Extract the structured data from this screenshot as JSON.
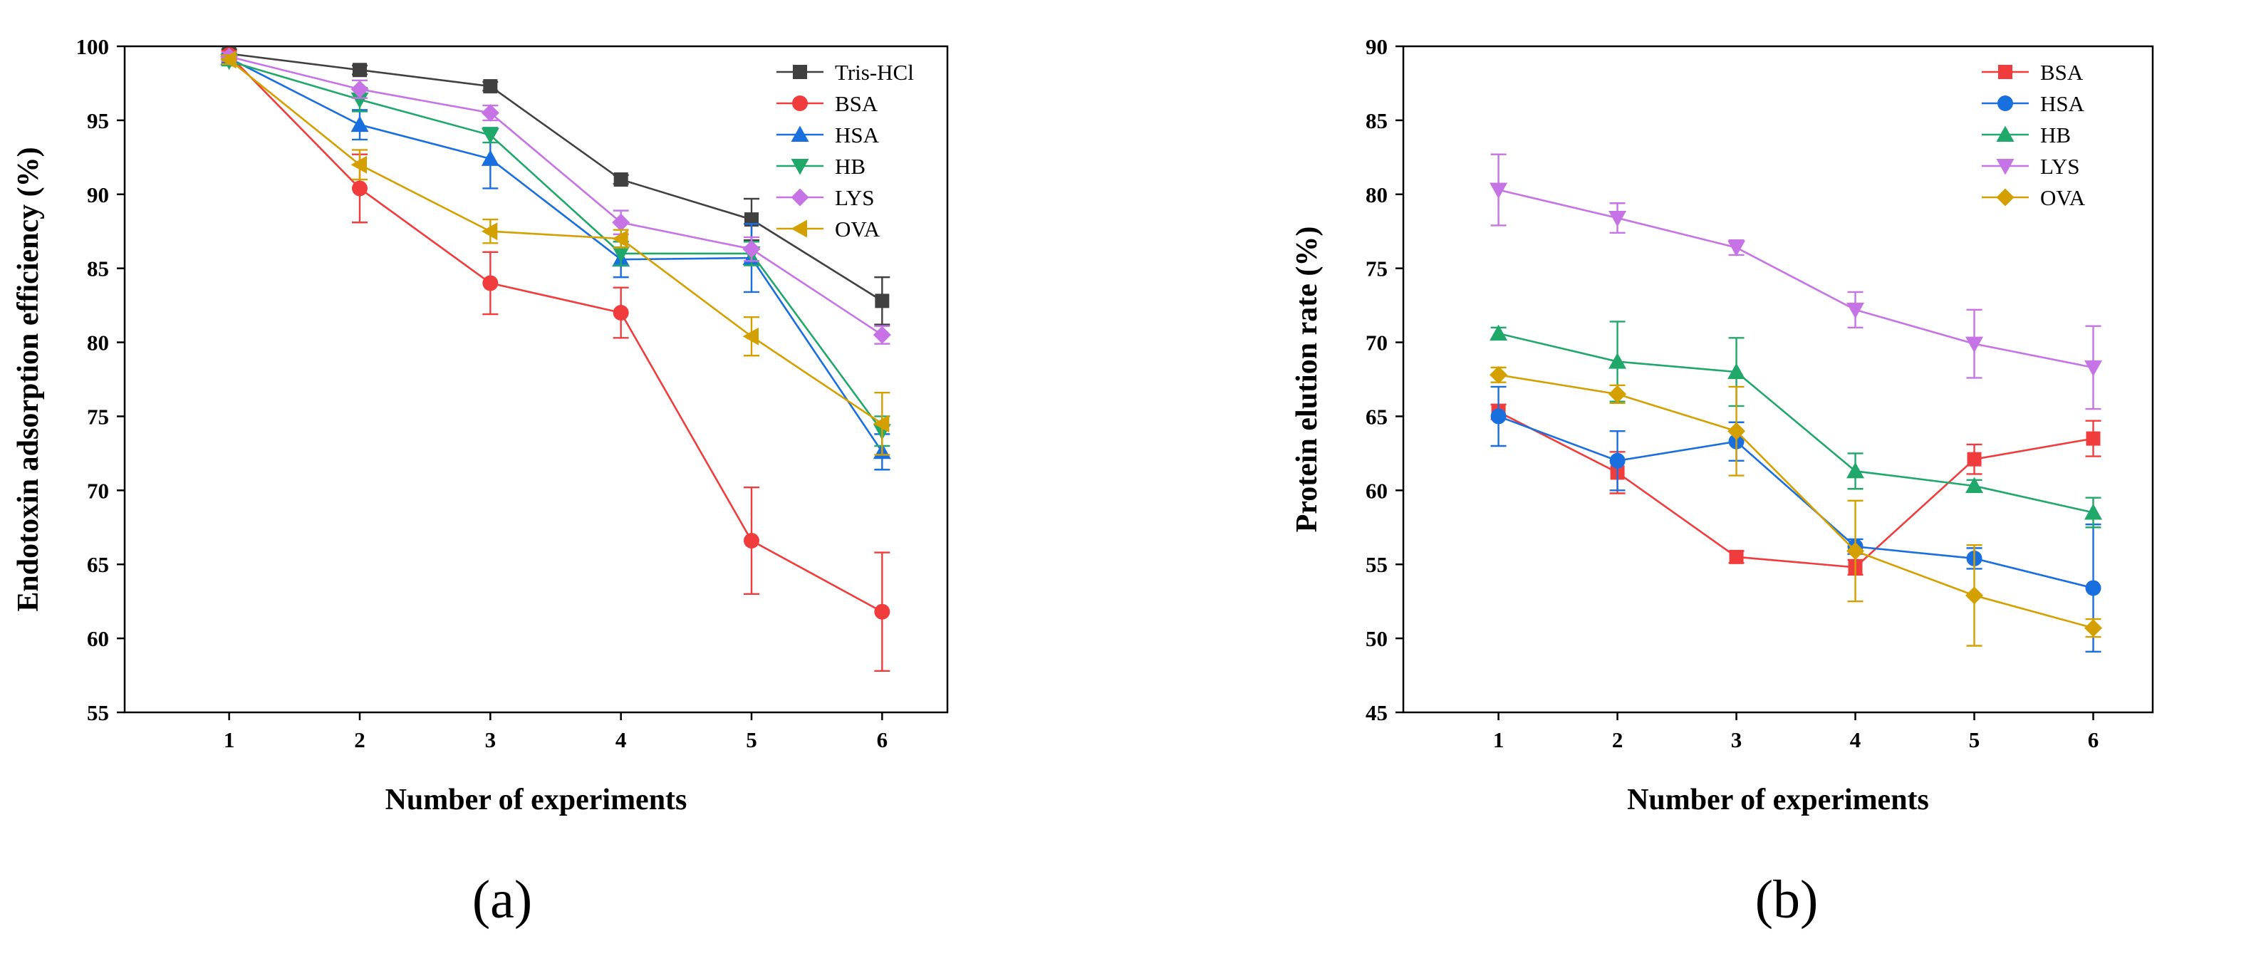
{
  "chart_data": [
    {
      "type": "line",
      "panel_label": "(a)",
      "xlabel": "Number of experiments",
      "ylabel": "Endotoxin adsorption efficiency (%)",
      "xlim": [
        0.2,
        6.5
      ],
      "ylim": [
        55,
        100
      ],
      "xticks": [
        1,
        2,
        3,
        4,
        5,
        6
      ],
      "yticks": [
        55,
        60,
        65,
        70,
        75,
        80,
        85,
        90,
        95,
        100
      ],
      "legend_position": "top-right",
      "x": [
        1,
        2,
        3,
        4,
        5,
        6
      ],
      "series": [
        {
          "name": "Tris-HCl",
          "color": "#404040",
          "marker": "square",
          "values": [
            99.5,
            98.4,
            97.3,
            91.0,
            88.3,
            82.8
          ],
          "errors": [
            0.3,
            0.3,
            0.3,
            0.3,
            1.4,
            1.6
          ]
        },
        {
          "name": "BSA",
          "color": "#f03c3c",
          "marker": "circle",
          "values": [
            99.4,
            90.4,
            84.0,
            82.0,
            66.6,
            61.8
          ],
          "errors": [
            0.3,
            2.3,
            2.1,
            1.7,
            3.6,
            4.0
          ]
        },
        {
          "name": "HSA",
          "color": "#1a6fdf",
          "marker": "triangle-up",
          "values": [
            99.2,
            94.7,
            92.4,
            85.6,
            85.7,
            72.6
          ],
          "errors": [
            0.3,
            1.0,
            2.0,
            1.2,
            2.3,
            1.2
          ]
        },
        {
          "name": "HB",
          "color": "#20a86b",
          "marker": "triangle-down",
          "values": [
            99.0,
            96.4,
            94.0,
            86.0,
            86.0,
            74.0
          ],
          "errors": [
            0.3,
            0.8,
            0.5,
            0.8,
            0.8,
            1.0
          ]
        },
        {
          "name": "LYS",
          "color": "#c673e6",
          "marker": "diamond",
          "values": [
            99.3,
            97.1,
            95.5,
            88.1,
            86.3,
            80.5
          ],
          "errors": [
            0.3,
            0.6,
            0.5,
            0.8,
            0.8,
            0.6
          ]
        },
        {
          "name": "OVA",
          "color": "#d4a000",
          "marker": "triangle-left",
          "values": [
            99.1,
            92.0,
            87.5,
            87.0,
            80.4,
            74.5
          ],
          "errors": [
            0.3,
            1.0,
            0.8,
            0.6,
            1.3,
            2.1
          ]
        }
      ]
    },
    {
      "type": "line",
      "panel_label": "(b)",
      "xlabel": "Number of experiments",
      "ylabel": "Protein elution rate (%)",
      "xlim": [
        0.2,
        6.5
      ],
      "ylim": [
        45,
        90
      ],
      "xticks": [
        1,
        2,
        3,
        4,
        5,
        6
      ],
      "yticks": [
        45,
        50,
        55,
        60,
        65,
        70,
        75,
        80,
        85,
        90
      ],
      "legend_position": "top-right",
      "x": [
        1,
        2,
        3,
        4,
        5,
        6
      ],
      "series": [
        {
          "name": "BSA",
          "color": "#f03c3c",
          "marker": "square",
          "values": [
            65.3,
            61.2,
            55.5,
            54.8,
            62.1,
            63.5
          ],
          "errors": [
            0.5,
            1.4,
            0.4,
            0.5,
            1.0,
            1.2
          ]
        },
        {
          "name": "HSA",
          "color": "#1a6fdf",
          "marker": "circle",
          "values": [
            65.0,
            62.0,
            63.3,
            56.2,
            55.4,
            53.4
          ],
          "errors": [
            2.0,
            2.0,
            1.3,
            0.5,
            0.7,
            4.3
          ]
        },
        {
          "name": "HB",
          "color": "#20a86b",
          "marker": "triangle-up",
          "values": [
            70.6,
            68.7,
            68.0,
            61.3,
            60.3,
            58.5
          ],
          "errors": [
            0.4,
            2.7,
            2.3,
            1.2,
            0.4,
            1.0
          ]
        },
        {
          "name": "LYS",
          "color": "#c673e6",
          "marker": "triangle-down",
          "values": [
            80.3,
            78.4,
            76.4,
            72.2,
            69.9,
            68.3
          ],
          "errors": [
            2.4,
            1.0,
            0.5,
            1.2,
            2.3,
            2.8
          ]
        },
        {
          "name": "OVA",
          "color": "#d4a000",
          "marker": "diamond",
          "values": [
            67.8,
            66.5,
            64.0,
            55.9,
            52.9,
            50.7
          ],
          "errors": [
            0.5,
            0.6,
            3.0,
            3.4,
            3.4,
            0.6
          ]
        }
      ]
    }
  ]
}
